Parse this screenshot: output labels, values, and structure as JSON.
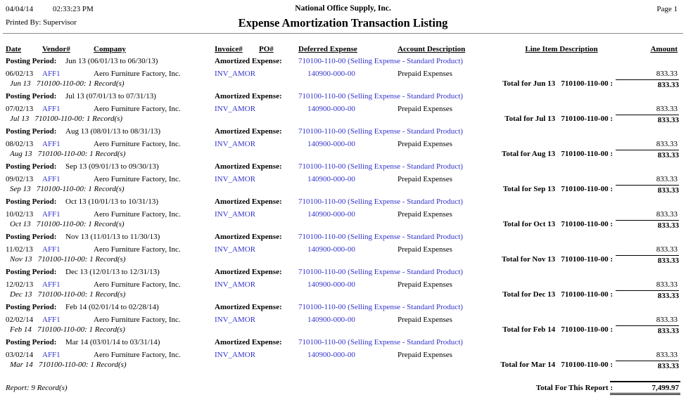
{
  "colors": {
    "link_blue": "#3333CC",
    "rule_gray": "#8a8a8a"
  },
  "page_header": {
    "date": "04/04/14",
    "time": "02:33:23 PM",
    "company": "National Office Supply, Inc.",
    "page_label": "Page 1",
    "printed_by": "Printed By: Supervisor",
    "title": "Expense Amortization Transaction Listing"
  },
  "columns": {
    "date": "Date",
    "vendor": "Vendor#",
    "company": "Company",
    "invoice": "Invoice#",
    "po": "PO#",
    "deferred": "Deferred Expense",
    "account_description": "Account Description",
    "line_item": "Line Item Description",
    "amount": "Amount"
  },
  "labels": {
    "posting_period": "Posting Period:",
    "amortized_expense": "Amortized Expense:"
  },
  "sections": [
    {
      "posting_period_label": "Posting Period:",
      "period": "Jun 13 (06/01/13 to 06/30/13)",
      "amortized_label": "Amortized Expense:",
      "amortized_account": "710100-110-00 (Selling Expense - Standard Product)",
      "date": "06/02/13",
      "vendor": "AFF1",
      "company": "Aero Furniture Factory, Inc.",
      "invoice": "INV_AMOR",
      "deferred_account": "140900-000-00",
      "account_description": "Prepaid Expenses",
      "amount": "833.33",
      "group_summary": "Jun 13   710100-110-00: 1 Record(s)",
      "total_label": "Total for Jun 13   710100-110-00 :",
      "total_amount": "833.33"
    },
    {
      "posting_period_label": "Posting Period:",
      "period": "Jul 13 (07/01/13 to 07/31/13)",
      "amortized_label": "Amortized Expense:",
      "amortized_account": "710100-110-00 (Selling Expense - Standard Product)",
      "date": "07/02/13",
      "vendor": "AFF1",
      "company": "Aero Furniture Factory, Inc.",
      "invoice": "INV_AMOR",
      "deferred_account": "140900-000-00",
      "account_description": "Prepaid Expenses",
      "amount": "833.33",
      "group_summary": "Jul 13   710100-110-00: 1 Record(s)",
      "total_label": "Total for Jul 13   710100-110-00 :",
      "total_amount": "833.33"
    },
    {
      "posting_period_label": "Posting Period:",
      "period": "Aug 13 (08/01/13 to 08/31/13)",
      "amortized_label": "Amortized Expense:",
      "amortized_account": "710100-110-00 (Selling Expense - Standard Product)",
      "date": "08/02/13",
      "vendor": "AFF1",
      "company": "Aero Furniture Factory, Inc.",
      "invoice": "INV_AMOR",
      "deferred_account": "140900-000-00",
      "account_description": "Prepaid Expenses",
      "amount": "833.33",
      "group_summary": "Aug 13   710100-110-00: 1 Record(s)",
      "total_label": "Total for Aug 13   710100-110-00 :",
      "total_amount": "833.33"
    },
    {
      "posting_period_label": "Posting Period:",
      "period": "Sep 13 (09/01/13 to 09/30/13)",
      "amortized_label": "Amortized Expense:",
      "amortized_account": "710100-110-00 (Selling Expense - Standard Product)",
      "date": "09/02/13",
      "vendor": "AFF1",
      "company": "Aero Furniture Factory, Inc.",
      "invoice": "INV_AMOR",
      "deferred_account": "140900-000-00",
      "account_description": "Prepaid Expenses",
      "amount": "833.33",
      "group_summary": "Sep 13   710100-110-00: 1 Record(s)",
      "total_label": "Total for Sep 13   710100-110-00 :",
      "total_amount": "833.33"
    },
    {
      "posting_period_label": "Posting Period:",
      "period": "Oct 13 (10/01/13 to 10/31/13)",
      "amortized_label": "Amortized Expense:",
      "amortized_account": "710100-110-00 (Selling Expense - Standard Product)",
      "date": "10/02/13",
      "vendor": "AFF1",
      "company": "Aero Furniture Factory, Inc.",
      "invoice": "INV_AMOR",
      "deferred_account": "140900-000-00",
      "account_description": "Prepaid Expenses",
      "amount": "833.33",
      "group_summary": "Oct 13   710100-110-00: 1 Record(s)",
      "total_label": "Total for Oct 13   710100-110-00 :",
      "total_amount": "833.33"
    },
    {
      "posting_period_label": "Posting Period:",
      "period": "Nov 13 (11/01/13 to 11/30/13)",
      "amortized_label": "Amortized Expense:",
      "amortized_account": "710100-110-00 (Selling Expense - Standard Product)",
      "date": "11/02/13",
      "vendor": "AFF1",
      "company": "Aero Furniture Factory, Inc.",
      "invoice": "INV_AMOR",
      "deferred_account": "140900-000-00",
      "account_description": "Prepaid Expenses",
      "amount": "833.33",
      "group_summary": "Nov 13   710100-110-00: 1 Record(s)",
      "total_label": "Total for Nov 13   710100-110-00 :",
      "total_amount": "833.33"
    },
    {
      "posting_period_label": "Posting Period:",
      "period": "Dec 13 (12/01/13 to 12/31/13)",
      "amortized_label": "Amortized Expense:",
      "amortized_account": "710100-110-00 (Selling Expense - Standard Product)",
      "date": "12/02/13",
      "vendor": "AFF1",
      "company": "Aero Furniture Factory, Inc.",
      "invoice": "INV_AMOR",
      "deferred_account": "140900-000-00",
      "account_description": "Prepaid Expenses",
      "amount": "833.33",
      "group_summary": "Dec 13   710100-110-00: 1 Record(s)",
      "total_label": "Total for Dec 13   710100-110-00 :",
      "total_amount": "833.33"
    },
    {
      "posting_period_label": "Posting Period:",
      "period": "Feb 14 (02/01/14 to 02/28/14)",
      "amortized_label": "Amortized Expense:",
      "amortized_account": "710100-110-00 (Selling Expense - Standard Product)",
      "date": "02/02/14",
      "vendor": "AFF1",
      "company": "Aero Furniture Factory, Inc.",
      "invoice": "INV_AMOR",
      "deferred_account": "140900-000-00",
      "account_description": "Prepaid Expenses",
      "amount": "833.33",
      "group_summary": "Feb 14   710100-110-00: 1 Record(s)",
      "total_label": "Total for Feb 14   710100-110-00 :",
      "total_amount": "833.33"
    },
    {
      "posting_period_label": "Posting Period:",
      "period": "Mar 14 (03/01/14 to 03/31/14)",
      "amortized_label": "Amortized Expense:",
      "amortized_account": "710100-110-00 (Selling Expense - Standard Product)",
      "date": "03/02/14",
      "vendor": "AFF1",
      "company": "Aero Furniture Factory, Inc.",
      "invoice": "INV_AMOR",
      "deferred_account": "140900-000-00",
      "account_description": "Prepaid Expenses",
      "amount": "833.33",
      "group_summary": "Mar 14   710100-110-00: 1 Record(s)",
      "total_label": "Total for Mar 14   710100-110-00 :",
      "total_amount": "833.33"
    }
  ],
  "footer": {
    "report_summary": "Report: 9 Record(s)",
    "total_label": "Total For This Report :",
    "total_amount": "7,499.97"
  }
}
